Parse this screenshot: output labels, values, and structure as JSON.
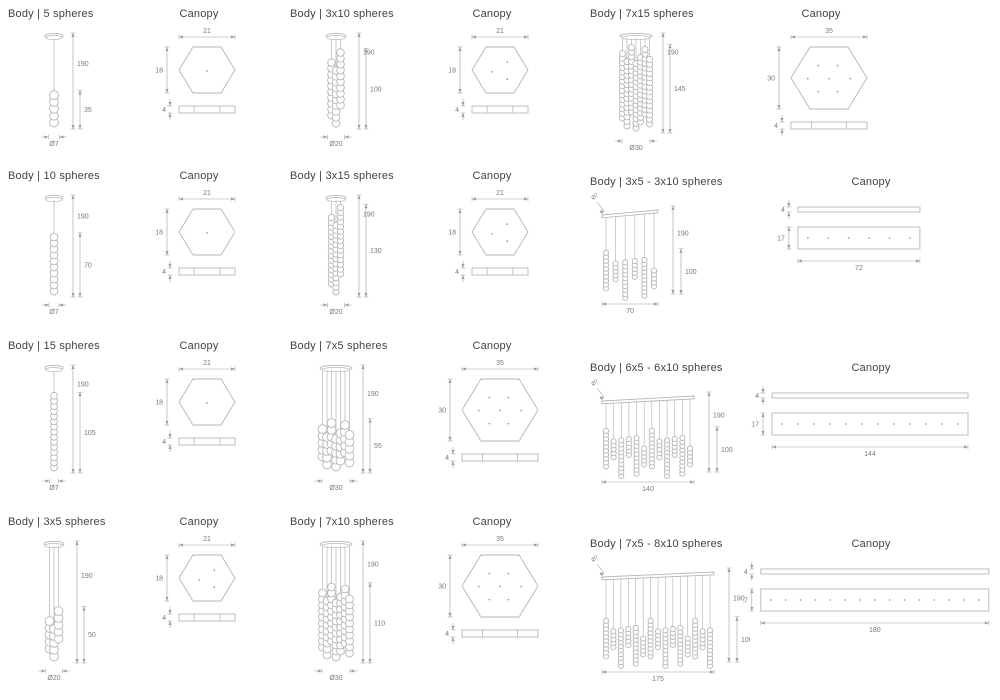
{
  "style": {
    "background": "#ffffff",
    "line_color": "#b4b6b8",
    "dim_color": "#9aa0a2",
    "dim_text_color": "#75797b",
    "title_color": "#3f4345"
  },
  "panels": [
    {
      "body": {
        "title": "Body | 5 spheres",
        "type": "cluster",
        "strands": 1,
        "spheres": 5,
        "dim_total": "190",
        "dim_drop": "35",
        "dim_width": "Ø7"
      },
      "canopy": {
        "title": "Canopy",
        "type": "hex",
        "dim_w": "21",
        "dim_h": "18",
        "dim_t": "4",
        "dots": 1
      }
    },
    {
      "body": {
        "title": "Body | 3x10 spheres",
        "type": "cluster",
        "strands": 3,
        "spheres": 10,
        "dim_total": "190",
        "dim_drop": "100",
        "dim_width": "Ø20"
      },
      "canopy": {
        "title": "Canopy",
        "type": "hex",
        "dim_w": "21",
        "dim_h": "18",
        "dim_t": "4",
        "dots": 3
      }
    },
    {
      "body": {
        "title": "Body | 7x15 spheres",
        "type": "cluster",
        "strands": 7,
        "spheres": 15,
        "dim_total": "190",
        "dim_drop": "145",
        "dim_width": "Ø30"
      },
      "canopy": {
        "title": "Canopy",
        "type": "hex",
        "dim_w": "35",
        "dim_h": "30",
        "dim_t": "4",
        "dots": 7
      }
    },
    {
      "body": {
        "title": "Body | 10 spheres",
        "type": "cluster",
        "strands": 1,
        "spheres": 10,
        "dim_total": "190",
        "dim_drop": "70",
        "dim_width": "Ø7"
      },
      "canopy": {
        "title": "Canopy",
        "type": "hex",
        "dim_w": "21",
        "dim_h": "18",
        "dim_t": "4",
        "dots": 1
      }
    },
    {
      "body": {
        "title": "Body | 3x15 spheres",
        "type": "cluster",
        "strands": 3,
        "spheres": 15,
        "dim_total": "190",
        "dim_drop": "130",
        "dim_width": "Ø20"
      },
      "canopy": {
        "title": "Canopy",
        "type": "hex",
        "dim_w": "21",
        "dim_h": "18",
        "dim_t": "4",
        "dots": 3
      }
    },
    {
      "body": {
        "title": "Body | 3x5 - 3x10 spheres",
        "type": "linear",
        "strands": 6,
        "mix": [
          5,
          10
        ],
        "dim_total": "190",
        "dim_drop": "100",
        "dim_width": "70",
        "callout": "Ø7"
      },
      "canopy": {
        "title": "Canopy",
        "type": "bar",
        "dim_w": "72",
        "dim_h": "17",
        "dim_t": "4",
        "dots": 6
      }
    },
    {
      "body": {
        "title": "Body | 15 spheres",
        "type": "cluster",
        "strands": 1,
        "spheres": 15,
        "dim_total": "190",
        "dim_drop": "105",
        "dim_width": "Ø7"
      },
      "canopy": {
        "title": "Canopy",
        "type": "hex",
        "dim_w": "21",
        "dim_h": "18",
        "dim_t": "4",
        "dots": 1
      }
    },
    {
      "body": {
        "title": "Body | 7x5 spheres",
        "type": "cluster",
        "strands": 7,
        "spheres": 5,
        "dim_total": "190",
        "dim_drop": "55",
        "dim_width": "Ø30"
      },
      "canopy": {
        "title": "Canopy",
        "type": "hex",
        "dim_w": "35",
        "dim_h": "30",
        "dim_t": "4",
        "dots": 7
      }
    },
    {
      "body": {
        "title": "Body | 6x5 - 6x10 spheres",
        "type": "linear",
        "strands": 12,
        "mix": [
          5,
          10
        ],
        "dim_total": "190",
        "dim_drop": "100",
        "dim_width": "140",
        "callout": "Ø7"
      },
      "canopy": {
        "title": "Canopy",
        "type": "bar",
        "dim_w": "144",
        "dim_h": "17",
        "dim_t": "4",
        "dots": 12
      }
    },
    {
      "body": {
        "title": "Body | 3x5 spheres",
        "type": "cluster",
        "strands": 3,
        "spheres": 5,
        "dim_total": "190",
        "dim_drop": "50",
        "dim_width": "Ø20"
      },
      "canopy": {
        "title": "Canopy",
        "type": "hex",
        "dim_w": "21",
        "dim_h": "18",
        "dim_t": "4",
        "dots": 3
      }
    },
    {
      "body": {
        "title": "Body | 7x10 spheres",
        "type": "cluster",
        "strands": 7,
        "spheres": 10,
        "dim_total": "190",
        "dim_drop": "110",
        "dim_width": "Ø30"
      },
      "canopy": {
        "title": "Canopy",
        "type": "hex",
        "dim_w": "35",
        "dim_h": "30",
        "dim_t": "4",
        "dots": 7
      }
    },
    {
      "body": {
        "title": "Body | 7x5 - 8x10 spheres",
        "type": "linear",
        "strands": 15,
        "mix": [
          5,
          10
        ],
        "dim_total": "190",
        "dim_drop": "100",
        "dim_width": "175",
        "callout": "Ø7"
      },
      "canopy": {
        "title": "Canopy",
        "type": "bar",
        "dim_w": "180",
        "dim_h": "17",
        "dim_t": "4",
        "dots": 15
      }
    }
  ]
}
